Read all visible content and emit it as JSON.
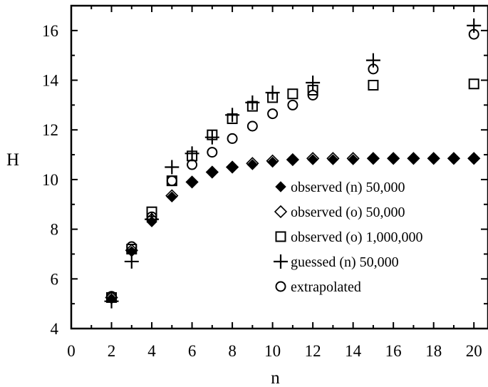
{
  "chart_data": {
    "type": "scatter",
    "xlabel": "n",
    "ylabel": "H",
    "xlim": [
      0,
      20.7
    ],
    "ylim": [
      4,
      17
    ],
    "xticks": [
      0,
      2,
      4,
      6,
      8,
      10,
      12,
      14,
      16,
      18,
      20
    ],
    "yticks": [
      4,
      6,
      8,
      10,
      12,
      14,
      16
    ],
    "legend_position": "lower-right",
    "series": [
      {
        "name": "observed (n) 50,000",
        "marker": "filled-diamond",
        "x": [
          2,
          3,
          4,
          5,
          6,
          7,
          8,
          9,
          10,
          11,
          12,
          13,
          14,
          15,
          16,
          17,
          18,
          19,
          20
        ],
        "y": [
          5.2,
          7.1,
          8.3,
          9.3,
          9.9,
          10.3,
          10.5,
          10.6,
          10.7,
          10.8,
          10.8,
          10.8,
          10.8,
          10.85,
          10.85,
          10.85,
          10.85,
          10.85,
          10.85
        ]
      },
      {
        "name": "observed (o) 50,000",
        "marker": "open-diamond",
        "x": [
          2,
          3,
          4,
          5,
          6,
          7,
          8,
          9,
          10,
          11,
          12,
          13,
          14,
          15,
          16,
          17,
          18,
          19,
          20
        ],
        "y": [
          5.25,
          7.15,
          8.4,
          9.35,
          9.9,
          10.3,
          10.5,
          10.65,
          10.75,
          10.8,
          10.85,
          10.85,
          10.85,
          10.85,
          10.85,
          10.85,
          10.85,
          10.85,
          10.85
        ]
      },
      {
        "name": "observed (o) 1,000,000",
        "marker": "open-square",
        "x": [
          2,
          3,
          4,
          5,
          6,
          7,
          8,
          9,
          10,
          11,
          12,
          15,
          20
        ],
        "y": [
          5.25,
          7.2,
          8.7,
          9.95,
          10.95,
          11.8,
          12.45,
          12.95,
          13.3,
          13.45,
          13.6,
          13.8,
          13.85
        ]
      },
      {
        "name": "guessed (n) 50,000",
        "marker": "plus",
        "x": [
          2,
          3,
          4,
          5,
          6,
          7,
          8,
          9,
          10,
          12,
          15,
          20
        ],
        "y": [
          5.1,
          6.7,
          8.4,
          10.5,
          11.05,
          11.7,
          12.6,
          13.1,
          13.5,
          13.9,
          14.8,
          16.2
        ]
      },
      {
        "name": "extrapolated",
        "marker": "open-circle",
        "x": [
          2,
          3,
          4,
          5,
          6,
          7,
          8,
          9,
          10,
          11,
          12,
          15,
          20
        ],
        "y": [
          5.3,
          7.3,
          8.5,
          9.95,
          10.6,
          11.1,
          11.65,
          12.15,
          12.65,
          13.0,
          13.4,
          14.45,
          15.85
        ]
      }
    ]
  }
}
